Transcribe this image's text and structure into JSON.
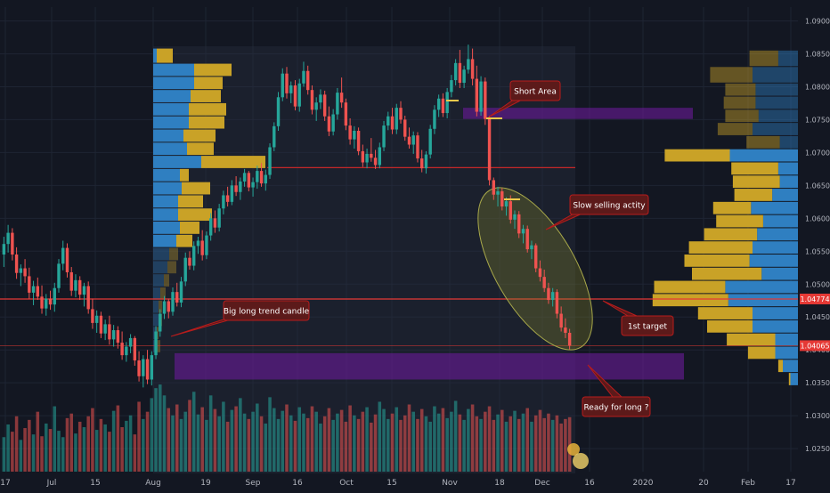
{
  "chart_data": {
    "type": "candlestick",
    "instrument_hint": "",
    "y_axis": {
      "ticks": [
        "1.09000",
        "1.08500",
        "1.08000",
        "1.07500",
        "1.07000",
        "1.06500",
        "1.06000",
        "1.05500",
        "1.05000",
        "1.04500",
        "1.04000",
        "1.03500",
        "1.03000",
        "1.02500"
      ],
      "tick_values": [
        1.09,
        1.085,
        1.08,
        1.075,
        1.07,
        1.065,
        1.06,
        1.055,
        1.05,
        1.045,
        1.04,
        1.035,
        1.03,
        1.025
      ],
      "range": [
        1.0215,
        1.0921
      ]
    },
    "x_axis": {
      "ticks": [
        "17",
        "Jul",
        "15",
        "Aug",
        "19",
        "Sep",
        "16",
        "Oct",
        "15",
        "Nov",
        "18",
        "Dec",
        "16",
        "2020",
        "20",
        "Feb",
        "17"
      ]
    },
    "price_labels": [
      {
        "text": "1.04774",
        "value": 1.04774,
        "color": "#e53935"
      },
      {
        "text": "1.04065",
        "value": 1.04065,
        "color": "#e53935"
      }
    ],
    "horizontal_lines": [
      {
        "value": 1.0677,
        "color": "#e53935",
        "extent": "Aug to Nov, dark red"
      },
      {
        "value": 1.04774,
        "color": "#e53935",
        "extent": "full width"
      },
      {
        "value": 1.04065,
        "color": "#e53935",
        "extent": "full width, thin"
      }
    ],
    "zones": [
      {
        "low": 1.0751,
        "high": 1.0768,
        "color": "#7b2cbf"
      },
      {
        "low": 1.0355,
        "high": 1.0395,
        "color": "#7b2cbf"
      }
    ],
    "annotations": [
      {
        "text": "Short Area"
      },
      {
        "text": "Slow selling actity"
      },
      {
        "text": "Big long trend candle"
      },
      {
        "text": "1st target"
      },
      {
        "text": "Ready for long ?"
      }
    ],
    "candles": [
      [
        1.0545,
        1.0572,
        1.0526,
        1.0561
      ],
      [
        1.0561,
        1.059,
        1.0548,
        1.0578
      ],
      [
        1.0578,
        1.0585,
        1.0536,
        1.0545
      ],
      [
        1.0545,
        1.0556,
        1.0508,
        1.0517
      ],
      [
        1.0517,
        1.053,
        1.0497,
        1.0524
      ],
      [
        1.0524,
        1.0538,
        1.0502,
        1.0512
      ],
      [
        1.0512,
        1.0525,
        1.0478,
        1.0487
      ],
      [
        1.0487,
        1.0505,
        1.0468,
        1.0497
      ],
      [
        1.0497,
        1.051,
        1.0476,
        1.0481
      ],
      [
        1.0481,
        1.0498,
        1.0455,
        1.0463
      ],
      [
        1.0463,
        1.0485,
        1.0452,
        1.0478
      ],
      [
        1.0478,
        1.049,
        1.0461,
        1.0469
      ],
      [
        1.0469,
        1.0502,
        1.0458,
        1.0494
      ],
      [
        1.0494,
        1.0538,
        1.0487,
        1.0531
      ],
      [
        1.0531,
        1.0566,
        1.0521,
        1.0555
      ],
      [
        1.0555,
        1.0562,
        1.051,
        1.0518
      ],
      [
        1.0518,
        1.0526,
        1.0482,
        1.049
      ],
      [
        1.049,
        1.0515,
        1.048,
        1.0506
      ],
      [
        1.0506,
        1.0512,
        1.0476,
        1.0484
      ],
      [
        1.0484,
        1.0502,
        1.0466,
        1.0497
      ],
      [
        1.0497,
        1.0504,
        1.0455,
        1.0462
      ],
      [
        1.0462,
        1.0478,
        1.0432,
        1.0441
      ],
      [
        1.0441,
        1.046,
        1.0426,
        1.0452
      ],
      [
        1.0452,
        1.0458,
        1.0418,
        1.0425
      ],
      [
        1.0425,
        1.0446,
        1.0415,
        1.0439
      ],
      [
        1.0439,
        1.0452,
        1.0408,
        1.0416
      ],
      [
        1.0416,
        1.0438,
        1.0405,
        1.043
      ],
      [
        1.043,
        1.0436,
        1.0402,
        1.0411
      ],
      [
        1.0411,
        1.0428,
        1.0385,
        1.0392
      ],
      [
        1.0392,
        1.0412,
        1.0382,
        1.0405
      ],
      [
        1.0405,
        1.0424,
        1.0395,
        1.0418
      ],
      [
        1.0418,
        1.0421,
        1.0376,
        1.0384
      ],
      [
        1.0384,
        1.0398,
        1.0352,
        1.036
      ],
      [
        1.036,
        1.0392,
        1.0343,
        1.0386
      ],
      [
        1.0386,
        1.04,
        1.0348,
        1.0355
      ],
      [
        1.0355,
        1.0398,
        1.0346,
        1.0392
      ],
      [
        1.0392,
        1.0436,
        1.0386,
        1.0428
      ],
      [
        1.0428,
        1.0462,
        1.042,
        1.0455
      ],
      [
        1.0455,
        1.0482,
        1.0447,
        1.0474
      ],
      [
        1.0474,
        1.0478,
        1.0448,
        1.0458
      ],
      [
        1.0458,
        1.0495,
        1.0452,
        1.0488
      ],
      [
        1.0488,
        1.0502,
        1.0466,
        1.0472
      ],
      [
        1.0472,
        1.0511,
        1.0465,
        1.0504
      ],
      [
        1.0504,
        1.0548,
        1.0497,
        1.054
      ],
      [
        1.054,
        1.055,
        1.0522,
        1.0528
      ],
      [
        1.0528,
        1.0565,
        1.0521,
        1.0558
      ],
      [
        1.0558,
        1.0572,
        1.0546,
        1.0566
      ],
      [
        1.0566,
        1.0582,
        1.0536,
        1.0544
      ],
      [
        1.0544,
        1.058,
        1.0538,
        1.0574
      ],
      [
        1.0574,
        1.0608,
        1.0566,
        1.06
      ],
      [
        1.06,
        1.0612,
        1.0578,
        1.0586
      ],
      [
        1.0586,
        1.0622,
        1.058,
        1.0615
      ],
      [
        1.0615,
        1.0642,
        1.0606,
        1.0635
      ],
      [
        1.0635,
        1.0648,
        1.0618,
        1.0625
      ],
      [
        1.0625,
        1.0658,
        1.062,
        1.065
      ],
      [
        1.065,
        1.0664,
        1.0634,
        1.064
      ],
      [
        1.064,
        1.0662,
        1.0628,
        1.0656
      ],
      [
        1.0656,
        1.0675,
        1.0648,
        1.0669
      ],
      [
        1.0669,
        1.0672,
        1.0641,
        1.0647
      ],
      [
        1.0647,
        1.0662,
        1.0633,
        1.0655
      ],
      [
        1.0655,
        1.068,
        1.0645,
        1.0672
      ],
      [
        1.0672,
        1.0684,
        1.0648,
        1.0653
      ],
      [
        1.0653,
        1.0674,
        1.0642,
        1.0666
      ],
      [
        1.0666,
        1.0714,
        1.066,
        1.0708
      ],
      [
        1.0708,
        1.0746,
        1.0702,
        1.074
      ],
      [
        1.074,
        1.0792,
        1.0733,
        1.0784
      ],
      [
        1.0784,
        1.0828,
        1.0778,
        1.082
      ],
      [
        1.082,
        1.083,
        1.0782,
        1.079
      ],
      [
        1.079,
        1.0808,
        1.0775,
        1.0802
      ],
      [
        1.0802,
        1.081,
        1.0764,
        1.077
      ],
      [
        1.077,
        1.0812,
        1.0762,
        1.0805
      ],
      [
        1.0805,
        1.0838,
        1.08,
        1.0824
      ],
      [
        1.0824,
        1.0832,
        1.0788,
        1.0795
      ],
      [
        1.0795,
        1.0802,
        1.0758,
        1.0765
      ],
      [
        1.0765,
        1.0784,
        1.0748,
        1.0776
      ],
      [
        1.0776,
        1.0796,
        1.0766,
        1.0788
      ],
      [
        1.0788,
        1.0794,
        1.0748,
        1.0755
      ],
      [
        1.0755,
        1.077,
        1.0725,
        1.0732
      ],
      [
        1.0732,
        1.0766,
        1.0726,
        1.0758
      ],
      [
        1.0758,
        1.0798,
        1.075,
        1.0791
      ],
      [
        1.0791,
        1.0814,
        1.0768,
        1.0776
      ],
      [
        1.0776,
        1.0782,
        1.0734,
        1.0741
      ],
      [
        1.0741,
        1.0752,
        1.0712,
        1.072
      ],
      [
        1.072,
        1.074,
        1.0706,
        1.0733
      ],
      [
        1.0733,
        1.0738,
        1.0696,
        1.0702
      ],
      [
        1.0702,
        1.0712,
        1.0678,
        1.0685
      ],
      [
        1.0685,
        1.0706,
        1.0676,
        1.0698
      ],
      [
        1.0698,
        1.0722,
        1.0686,
        1.0692
      ],
      [
        1.0692,
        1.0704,
        1.0675,
        1.0681
      ],
      [
        1.0681,
        1.0715,
        1.0676,
        1.0708
      ],
      [
        1.0708,
        1.0748,
        1.0702,
        1.0741
      ],
      [
        1.0741,
        1.0762,
        1.0734,
        1.0755
      ],
      [
        1.0755,
        1.0768,
        1.0728,
        1.0735
      ],
      [
        1.0735,
        1.0774,
        1.0728,
        1.0768
      ],
      [
        1.0768,
        1.0778,
        1.0744,
        1.075
      ],
      [
        1.075,
        1.0756,
        1.0718,
        1.0724
      ],
      [
        1.0724,
        1.0738,
        1.0706,
        1.0712
      ],
      [
        1.0712,
        1.0732,
        1.0698,
        1.0726
      ],
      [
        1.0726,
        1.0731,
        1.0685,
        1.0691
      ],
      [
        1.0691,
        1.0704,
        1.067,
        1.0676
      ],
      [
        1.0676,
        1.0702,
        1.0668,
        1.0697
      ],
      [
        1.0697,
        1.0742,
        1.0691,
        1.0736
      ],
      [
        1.0736,
        1.0772,
        1.0728,
        1.0765
      ],
      [
        1.0765,
        1.0788,
        1.0754,
        1.0782
      ],
      [
        1.0782,
        1.079,
        1.0754,
        1.076
      ],
      [
        1.076,
        1.0798,
        1.0752,
        1.0792
      ],
      [
        1.0792,
        1.0818,
        1.0784,
        1.081
      ],
      [
        1.081,
        1.0842,
        1.0802,
        1.0836
      ],
      [
        1.0836,
        1.0856,
        1.0798,
        1.0806
      ],
      [
        1.0806,
        1.0832,
        1.0798,
        1.0826
      ],
      [
        1.0826,
        1.0864,
        1.082,
        1.0842
      ],
      [
        1.0842,
        1.0858,
        1.0802,
        1.0812
      ],
      [
        1.0812,
        1.0832,
        1.0755,
        1.0762
      ],
      [
        1.0762,
        1.0816,
        1.0756,
        1.0808
      ],
      [
        1.0808,
        1.0814,
        1.0742,
        1.0751
      ],
      [
        1.0751,
        1.0756,
        1.065,
        1.0658
      ],
      [
        1.0658,
        1.0662,
        1.0628,
        1.0636
      ],
      [
        1.0636,
        1.0648,
        1.0618,
        1.0641
      ],
      [
        1.0641,
        1.0646,
        1.0612,
        1.0618
      ],
      [
        1.0618,
        1.0632,
        1.0604,
        1.0626
      ],
      [
        1.0626,
        1.0635,
        1.0592,
        1.0598
      ],
      [
        1.0598,
        1.0612,
        1.0584,
        1.0606
      ],
      [
        1.0606,
        1.0611,
        1.057,
        1.0577
      ],
      [
        1.0577,
        1.059,
        1.0562,
        1.0584
      ],
      [
        1.0584,
        1.0589,
        1.0548,
        1.0553
      ],
      [
        1.0553,
        1.0566,
        1.0538,
        1.0559
      ],
      [
        1.0559,
        1.0562,
        1.0518,
        1.0524
      ],
      [
        1.0524,
        1.0536,
        1.0504,
        1.0511
      ],
      [
        1.0511,
        1.0522,
        1.0488,
        1.0494
      ],
      [
        1.0494,
        1.0502,
        1.047,
        1.0476
      ],
      [
        1.0476,
        1.0494,
        1.0466,
        1.0488
      ],
      [
        1.0488,
        1.0492,
        1.0448,
        1.0455
      ],
      [
        1.0455,
        1.0466,
        1.0428,
        1.0434
      ],
      [
        1.0434,
        1.0448,
        1.0418,
        1.0426
      ],
      [
        1.0426,
        1.0432,
        1.0401,
        1.04065
      ]
    ],
    "volume_range": [
      0,
      100
    ],
    "volumes": [
      38,
      52,
      44,
      61,
      35,
      48,
      57,
      41,
      66,
      39,
      53,
      47,
      72,
      45,
      38,
      59,
      64,
      42,
      55,
      49,
      61,
      70,
      46,
      58,
      52,
      44,
      67,
      73,
      49,
      56,
      62,
      41,
      77,
      58,
      66,
      81,
      92,
      96,
      84,
      70,
      62,
      74,
      58,
      66,
      79,
      88,
      63,
      71,
      57,
      84,
      69,
      61,
      77,
      55,
      68,
      72,
      81,
      64,
      58,
      66,
      75,
      61,
      53,
      82,
      70,
      58,
      67,
      74,
      62,
      56,
      71,
      64,
      59,
      72,
      66,
      53,
      61,
      70,
      57,
      64,
      68,
      55,
      73,
      62,
      58,
      66,
      71,
      54,
      63,
      77,
      69,
      58,
      64,
      71,
      57,
      62,
      74,
      66,
      58,
      69,
      61,
      55,
      72,
      64,
      70,
      59,
      66,
      78,
      63,
      57,
      69,
      74,
      61,
      58,
      66,
      72,
      57,
      63,
      68,
      55,
      61,
      67,
      58,
      64,
      70,
      55,
      62,
      68,
      59,
      64,
      57,
      62,
      53,
      58,
      60
    ],
    "volume_profile_left": {
      "levels": [
        [
          1.0835,
          1.0858,
          4,
          18,
          0
        ],
        [
          1.0815,
          1.0835,
          46,
          42,
          0
        ],
        [
          1.0795,
          1.0815,
          46,
          32,
          0
        ],
        [
          1.0775,
          1.0795,
          42,
          34,
          0
        ],
        [
          1.0755,
          1.0775,
          40,
          42,
          0
        ],
        [
          1.0735,
          1.0755,
          40,
          40,
          0
        ],
        [
          1.0715,
          1.0735,
          34,
          36,
          0
        ],
        [
          1.0695,
          1.0715,
          38,
          30,
          0
        ],
        [
          1.0675,
          1.0695,
          54,
          72,
          0
        ],
        [
          1.0655,
          1.0675,
          30,
          10,
          0
        ],
        [
          1.0635,
          1.0655,
          32,
          32,
          0
        ],
        [
          1.0615,
          1.0635,
          28,
          28,
          0
        ],
        [
          1.0595,
          1.0615,
          28,
          38,
          0
        ],
        [
          1.0575,
          1.0595,
          30,
          22,
          0
        ],
        [
          1.0555,
          1.0575,
          26,
          18,
          0
        ],
        [
          1.0535,
          1.0555,
          18,
          10,
          1
        ],
        [
          1.0515,
          1.0535,
          16,
          10,
          1
        ],
        [
          1.0495,
          1.0515,
          12,
          6,
          1
        ],
        [
          1.0475,
          1.0495,
          8,
          6,
          1
        ],
        [
          1.0455,
          1.0475,
          6,
          4,
          1
        ],
        [
          1.0435,
          1.0455,
          6,
          4,
          1
        ],
        [
          1.0415,
          1.0435,
          4,
          2,
          1
        ],
        [
          1.0395,
          1.0415,
          4,
          4,
          1
        ]
      ]
    },
    "volume_profile_right": {
      "levels": [
        [
          1.083,
          1.0855,
          38,
          26,
          0
        ],
        [
          1.0805,
          1.083,
          56,
          60,
          0
        ],
        [
          1.0785,
          1.0805,
          40,
          56,
          0
        ],
        [
          1.0765,
          1.0785,
          42,
          56,
          0
        ],
        [
          1.0745,
          1.0765,
          44,
          52,
          0
        ],
        [
          1.0725,
          1.0745,
          46,
          60,
          0
        ],
        [
          1.0705,
          1.0725,
          44,
          24,
          0
        ],
        [
          1.0685,
          1.0705,
          86,
          90,
          1
        ],
        [
          1.0665,
          1.0685,
          62,
          26,
          1
        ],
        [
          1.0645,
          1.0665,
          62,
          24,
          1
        ],
        [
          1.0625,
          1.0645,
          50,
          34,
          1
        ],
        [
          1.0605,
          1.0625,
          50,
          62,
          1
        ],
        [
          1.0585,
          1.0605,
          62,
          46,
          1
        ],
        [
          1.0565,
          1.0585,
          70,
          54,
          1
        ],
        [
          1.0545,
          1.0565,
          84,
          60,
          1
        ],
        [
          1.0525,
          1.0545,
          86,
          64,
          1
        ],
        [
          1.0505,
          1.0525,
          92,
          48,
          1
        ],
        [
          1.0485,
          1.0505,
          94,
          96,
          1
        ],
        [
          1.0465,
          1.0485,
          100,
          92,
          1
        ],
        [
          1.0445,
          1.0465,
          72,
          60,
          1
        ],
        [
          1.0425,
          1.0445,
          60,
          60,
          1
        ],
        [
          1.0405,
          1.0425,
          64,
          30,
          1
        ],
        [
          1.0385,
          1.0405,
          36,
          30,
          1
        ],
        [
          1.0365,
          1.0385,
          6,
          20,
          1
        ],
        [
          1.0345,
          1.0365,
          2,
          10,
          1
        ]
      ]
    },
    "colors": {
      "background": "#131722",
      "up": "#26a69a",
      "down": "#ef5350",
      "profile_buy": "#2f7fc1",
      "profile_sell": "#c9a227",
      "zone": "#6a1b9a",
      "callout": "#5c1a1a",
      "callout_border": "#b71c1c",
      "ellipse": "#8a8a2a",
      "axis_text": "#b2b5be"
    }
  }
}
